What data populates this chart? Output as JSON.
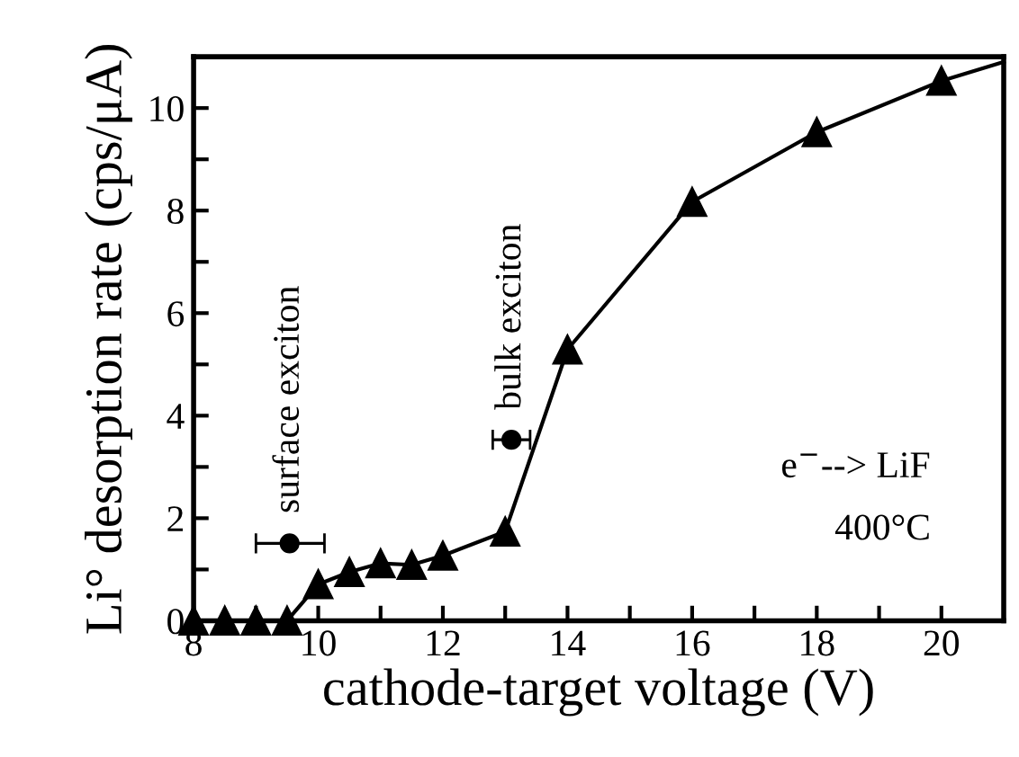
{
  "chart_data": {
    "type": "line",
    "xlabel": "cathode-target voltage (V)",
    "ylabel": "Li° desorption rate (cps/μA)",
    "xlim": [
      8,
      21
    ],
    "ylim": [
      0,
      11
    ],
    "xticks": [
      8,
      {
        "value": 9,
        "label": null
      },
      10,
      {
        "value": 11,
        "label": null
      },
      12,
      {
        "value": 13,
        "label": null
      },
      14,
      {
        "value": 15,
        "label": null
      },
      16,
      {
        "value": 17,
        "label": null
      },
      18,
      {
        "value": 19,
        "label": null
      },
      20
    ],
    "yticks": [
      0,
      {
        "value": 1,
        "label": null
      },
      2,
      {
        "value": 3,
        "label": null
      },
      4,
      {
        "value": 5,
        "label": null
      },
      6,
      {
        "value": 7,
        "label": null
      },
      8,
      {
        "value": 9,
        "label": null
      },
      10
    ],
    "grid": false,
    "legend": false,
    "series": [
      {
        "color": "#000000",
        "marker": "none",
        "line_style": "solid",
        "x": [
          8,
          8.5,
          9,
          9.5,
          10,
          10.5,
          11,
          11.5,
          12,
          13,
          14,
          16,
          18,
          20,
          21
        ],
        "values": [
          0,
          0,
          0,
          0,
          0.71,
          0.95,
          1.12,
          1.09,
          1.27,
          1.74,
          5.29,
          8.17,
          9.53,
          10.53,
          10.9
        ]
      },
      {
        "type": "scatter",
        "color": "#000000",
        "marker": "triangle",
        "x": [
          8,
          8.5,
          9,
          9.5,
          10,
          10.5,
          11,
          11.5,
          12,
          13,
          14,
          16,
          18,
          20
        ],
        "values": [
          0,
          0,
          0,
          0,
          0.71,
          0.95,
          1.12,
          1.09,
          1.27,
          1.74,
          5.29,
          8.17,
          9.53,
          10.53
        ]
      },
      {
        "type": "scatter",
        "color": "#000000",
        "marker": "circle",
        "x": [
          9.54,
          13.1
        ],
        "values": [
          1.51,
          3.53
        ],
        "xerrors": [
          [
            9.0,
            10.1
          ],
          [
            12.8,
            13.4
          ]
        ]
      }
    ],
    "annotations": [
      {
        "text": "surface exciton",
        "x": 9.54,
        "y": 1.51
      },
      {
        "text": "bulk exciton",
        "x": 13.1,
        "y": 3.53
      },
      "e$^{−}$--> LiF",
      "400°C"
    ]
  }
}
